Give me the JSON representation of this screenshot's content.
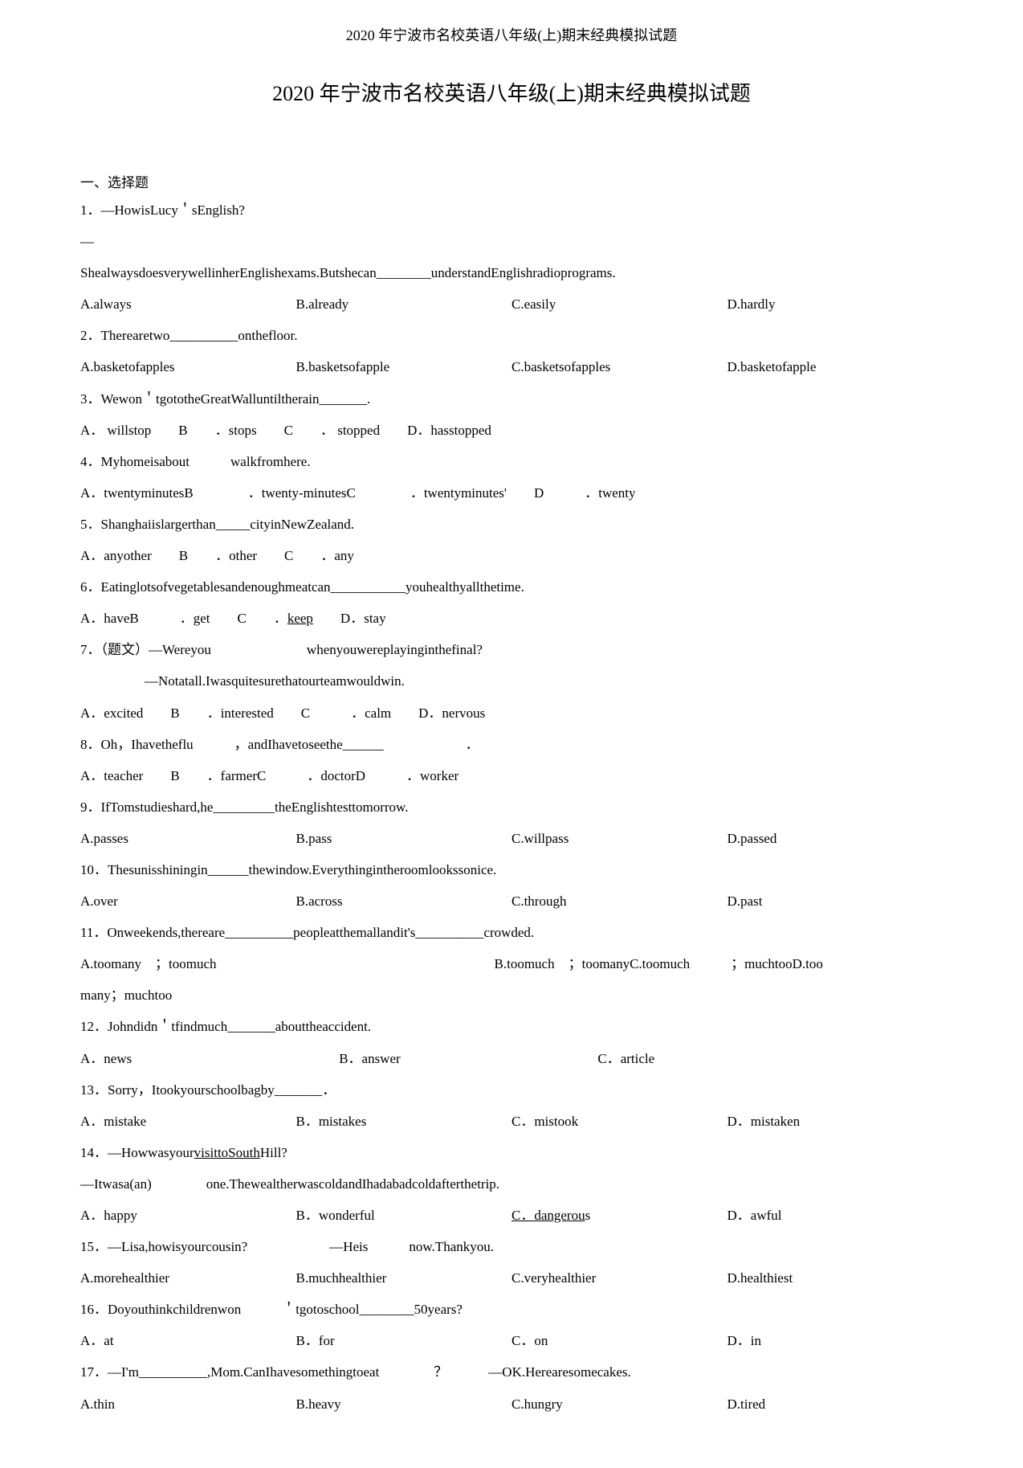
{
  "header": "2020 年宁波市名校英语八年级(上)期末经典模拟试题",
  "title": "2020 年宁波市名校英语八年级(上)期末经典模拟试题",
  "section": "一、选择题",
  "q1": {
    "num": "1．",
    "line1": "—HowisLucy＇sEnglish?",
    "line2": "—",
    "line3": "ShealwaysdoesverywellinherEnglishexams.Butshecan________understandEnglishradioprograms.",
    "a": "A.always",
    "b": "B.already",
    "c": "C.easily",
    "d": "D.hardly"
  },
  "q2": {
    "num": "2．",
    "text": "Therearetwo__________onthefloor.",
    "a": "A.basketofapples",
    "b": "B.basketsofapple",
    "c": "C.basketsofapples",
    "d": "D.basketofapple"
  },
  "q3": {
    "num": "3．",
    "text": "Wewon＇tgototheGreatWalluntiltherain_______.",
    "opts": "A． willstop　　B　　．",
    "opts2": "stops　　C　　． stopped　　D．hasstopped"
  },
  "q4": {
    "num": "4．",
    "text": "Myhomeisabout　　　walkfromhere.",
    "a": "A．twentyminutesB　　　　．twenty-minutesC　　　　．twentyminutes'　　D　　　．twenty"
  },
  "q5": {
    "num": "5．",
    "text": "Shanghaiislargerthan_____cityinNewZealand.",
    "opts": "A．anyother　　B　　．other　　C　　．any"
  },
  "q6": {
    "num": "6．",
    "text": "Eatinglotsofvegetablesandenoughmeatcan___________youhealthyallthetime.",
    "opts": "A．haveB　　　．get　　C　　．",
    "opts2": "keep　　D．stay"
  },
  "q7": {
    "num": "7．",
    "text": "（题文）—Wereyou　　　　　　　whenyouwereplayinginthefinal?",
    "line2": "—Notatall.Iwasquitesurethatourteamwouldwin.",
    "opts": "A．excited　　B　　．interested　　C　　　．calm　　D．nervous"
  },
  "q8": {
    "num": "8．",
    "text": "Oh，Ihavetheflu　　　，andIhavetoseethe______　　　　　　．",
    "opts": "A．teacher　　B　　．farmerC　　　．doctorD　　　．worker"
  },
  "q9": {
    "num": "9．",
    "text": "IfTomstudieshard,he_________theEnglishtesttomorrow.",
    "a": "A.passes",
    "b": "B.pass",
    "c": "C.willpass",
    "d": "D.passed"
  },
  "q10": {
    "num": "10．",
    "text": "Thesunisshiningin______thewindow.Everythingintheroomlookssonice.",
    "a": "A.over",
    "b": "B.across",
    "c": "C.through",
    "d": "D.past"
  },
  "q11": {
    "num": "11．",
    "text": "Onweekends,thereare__________peopleatthemallandit's__________crowded.",
    "line2a": "A.toomany　；toomuch",
    "line2b": "B.toomuch　；toomanyC.toomuch　　　；muchtooD.too",
    "line3": "many；muchtoo"
  },
  "q12": {
    "num": "12．",
    "text": "Johndidn＇tfindmuch_______abouttheaccident.",
    "a": "A．news",
    "b": "B．answer",
    "c": "C．article"
  },
  "q13": {
    "num": "13．",
    "text": "Sorry，Itookyourschoolbagby_______．",
    "a": "A．mistake",
    "b": "B．mistakes",
    "c": "C．mistook",
    "d": "D．mistaken"
  },
  "q14": {
    "num": "14．",
    "text1": "—Howwasyour",
    "text2": "visittoSouth",
    "text3": "Hill?",
    "line2": "—Itwasa(an)　　　　one.ThewealtherwascoldandIhadabadcoldafterthetrip.",
    "a": "A．happy",
    "b": "B．wonderful",
    "c": "C．dangerou",
    "cs": "s",
    "d": "D．awful"
  },
  "q15": {
    "num": "15．",
    "text": "—Lisa,howisyourcousin?　　　　　　—Heis　　　now.Thankyou.",
    "a": "A.morehealthier",
    "b": "B.muchhealthier",
    "c": "C.veryhealthier",
    "d": "D.healthiest"
  },
  "q16": {
    "num": "16．",
    "text": "Doyouthinkchildrenwon　　　＇tgotoschool________50years?",
    "a": "A．at",
    "b": "B．for",
    "c": "C．on",
    "d": "D．in"
  },
  "q17": {
    "num": "17．",
    "text": "—I'm__________,Mom.CanIhavesomethingtoeat　　　　？　　　—OK.Herearesomecakes.",
    "a": "A.thin",
    "b": "B.heavy",
    "c": "C.hungry",
    "d": "D.tired"
  }
}
